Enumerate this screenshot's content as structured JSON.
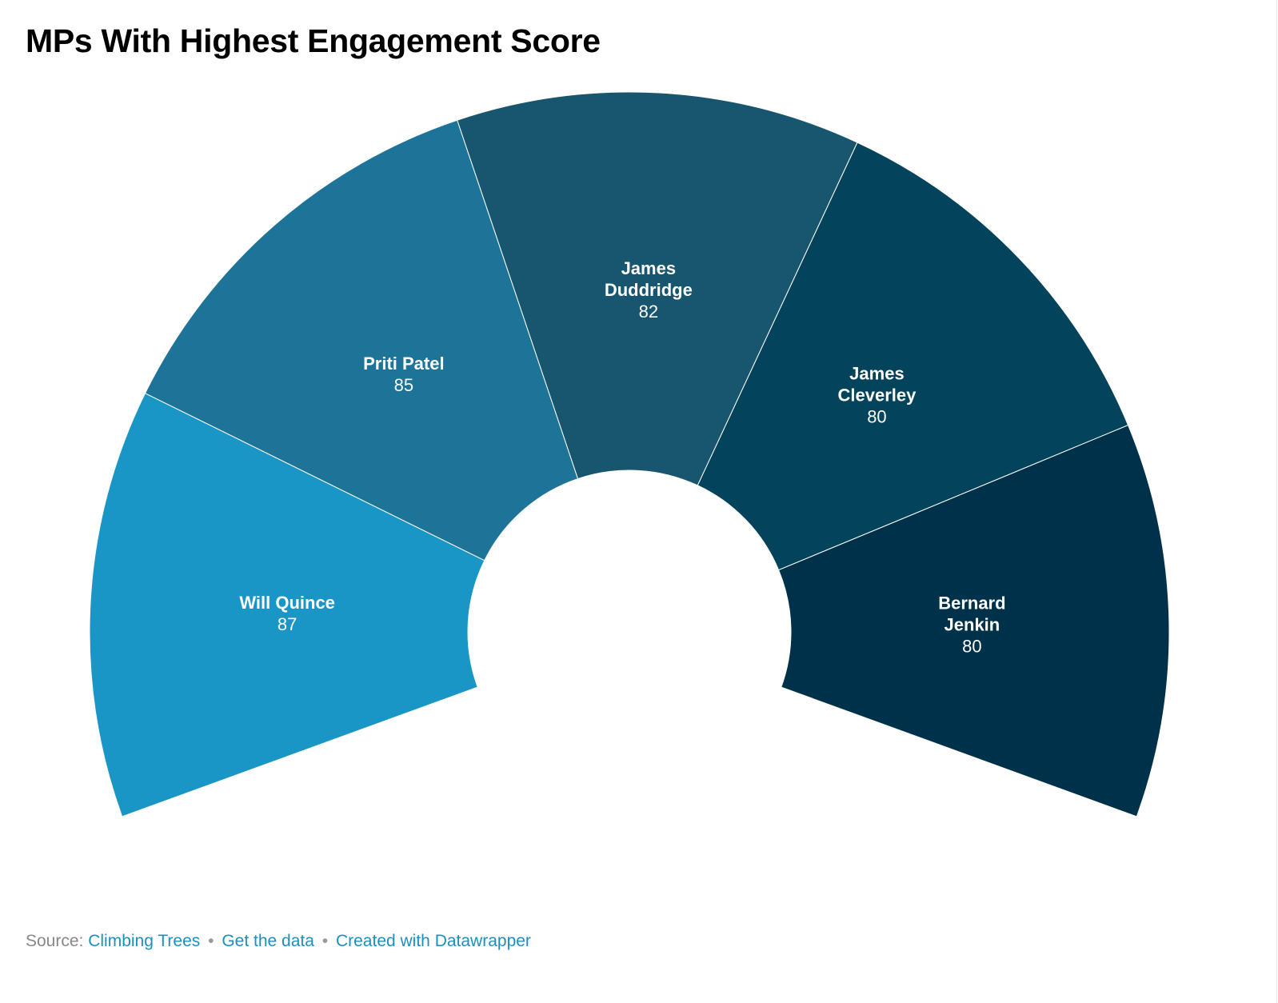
{
  "title": "MPs With Highest Engagement Score",
  "footer": {
    "source_prefix": "Source:",
    "source_link": "Climbing Trees",
    "separator": "•",
    "get_data": "Get the data",
    "created_with": "Created with Datawrapper"
  },
  "chart_data": {
    "type": "pie",
    "subtype": "half-donut",
    "title": "MPs With Highest Engagement Score",
    "labels": [
      "Will Quince",
      "Priti Patel",
      "James Duddridge",
      "James Cleverley",
      "Bernard Jenkin"
    ],
    "label_lines": [
      [
        "Will Quince"
      ],
      [
        "Priti Patel"
      ],
      [
        "James",
        "Duddridge"
      ],
      [
        "James",
        "Cleverley"
      ],
      [
        "Bernard",
        "Jenkin"
      ]
    ],
    "values": [
      87,
      85,
      82,
      80,
      80
    ],
    "colors": [
      "#1a96c6",
      "#1d7398",
      "#17566e",
      "#03435c",
      "#00314a"
    ]
  }
}
